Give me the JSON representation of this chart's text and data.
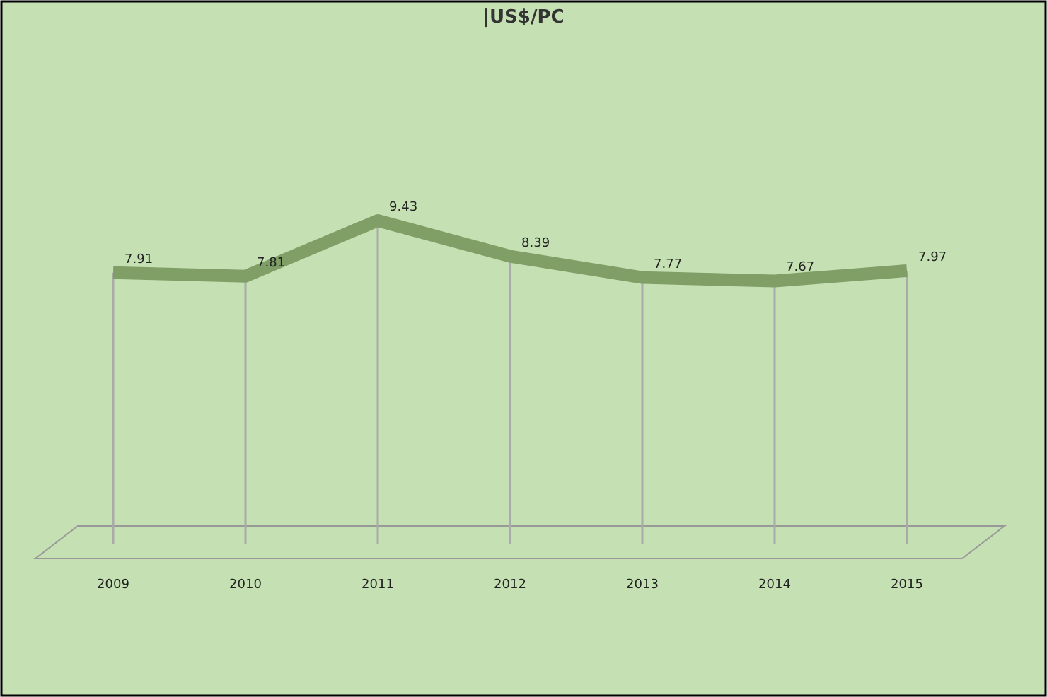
{
  "chart_data": {
    "type": "line",
    "title": "|US$/PC",
    "categories": [
      "2009",
      "2010",
      "2011",
      "2012",
      "2013",
      "2014",
      "2015"
    ],
    "series": [
      {
        "color": "#7f9f66",
        "values": [
          7.91,
          7.81,
          9.43,
          8.39,
          7.77,
          7.67,
          7.97
        ]
      }
    ],
    "tick_labels": "x",
    "data_labels": true,
    "grid": "x",
    "marker": "none",
    "line_style": "solid"
  }
}
